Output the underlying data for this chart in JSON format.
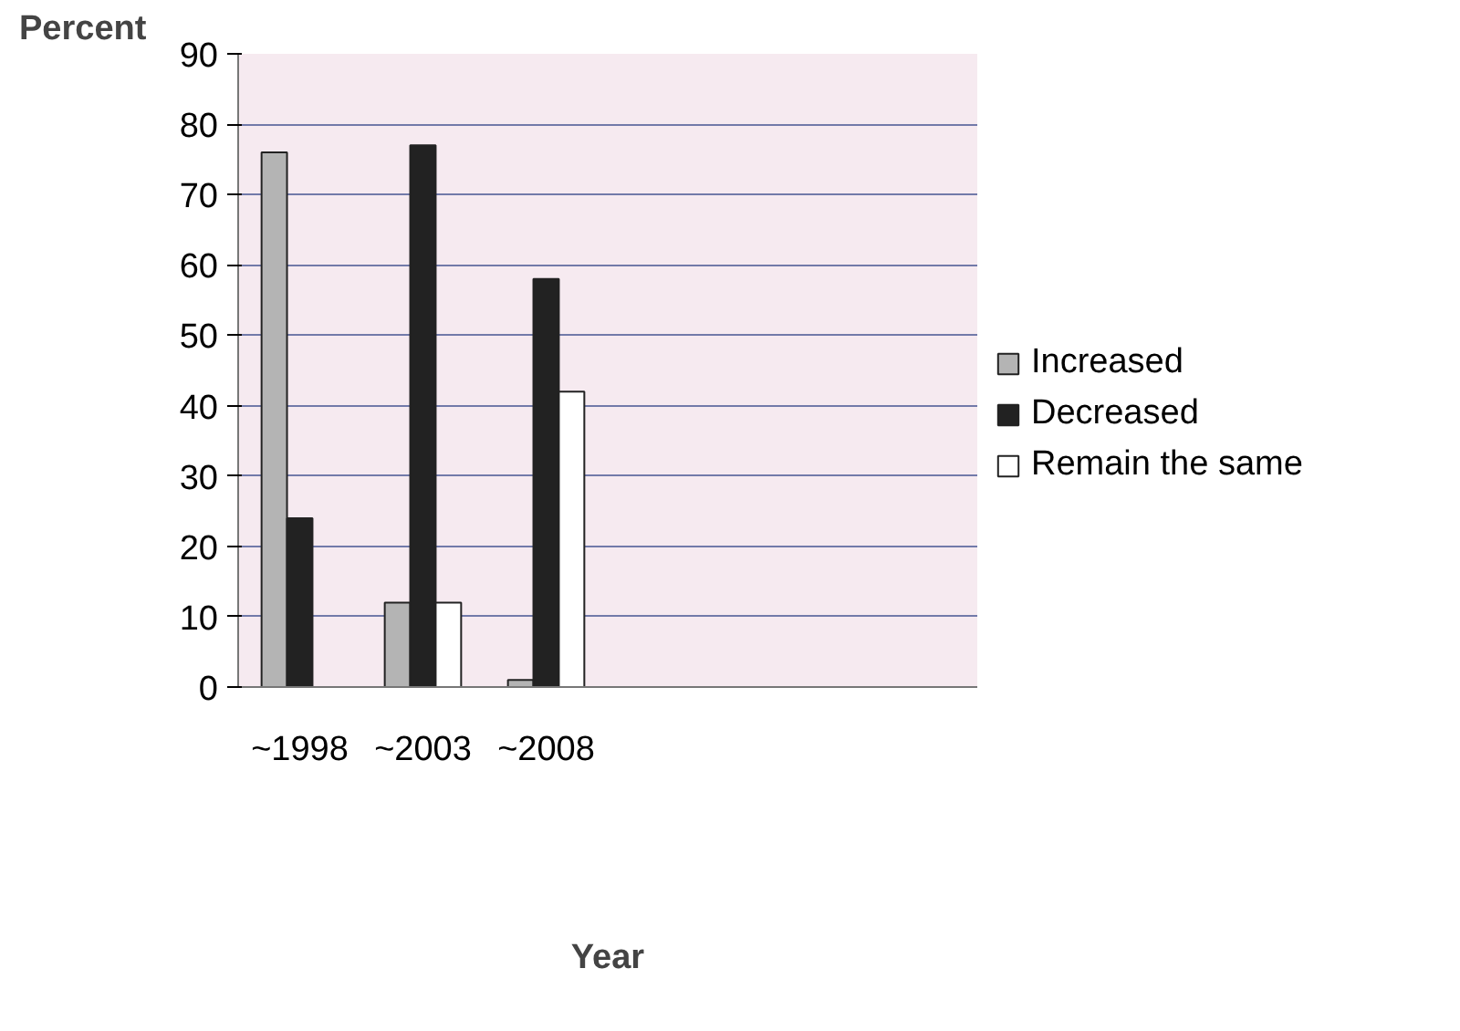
{
  "chart_data": {
    "type": "bar",
    "ylabel": "Percent",
    "xlabel": "Year",
    "categories": [
      "~1998",
      "~2003",
      "~2008",
      null,
      null,
      null
    ],
    "series": [
      {
        "name": "Increased",
        "color": "#b4b4b4",
        "values": [
          76,
          12,
          1,
          null,
          null,
          null
        ]
      },
      {
        "name": "Decreased",
        "color": "#222222",
        "values": [
          24,
          77,
          58,
          null,
          null,
          null
        ]
      },
      {
        "name": "Remain the same",
        "color": "#ffffff",
        "values": [
          0,
          12,
          42,
          null,
          null,
          null
        ]
      }
    ],
    "ylim": [
      0,
      90
    ],
    "yticks": [
      0,
      10,
      20,
      30,
      40,
      50,
      60,
      70,
      80,
      90
    ],
    "grid": "y",
    "legend": "right"
  }
}
